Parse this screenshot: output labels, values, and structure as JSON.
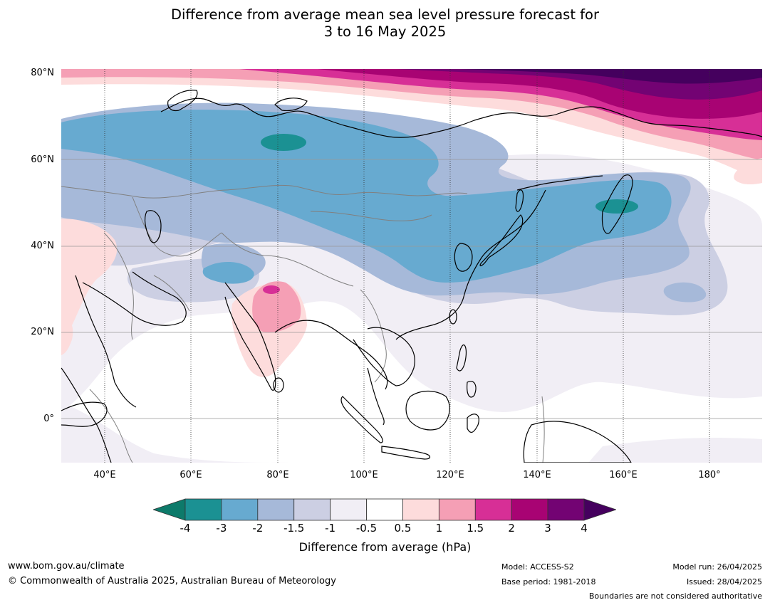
{
  "title": {
    "line1": "Difference from average mean sea level pressure forecast for",
    "line2": "3 to 16 May 2025"
  },
  "map": {
    "lat_labels": [
      "80°N",
      "60°N",
      "40°N",
      "20°N",
      "0°"
    ],
    "lon_labels": [
      "40°E",
      "60°E",
      "80°E",
      "100°E",
      "120°E",
      "140°E",
      "160°E",
      "180°"
    ]
  },
  "colorbar": {
    "ticks": [
      "-4",
      "-3",
      "-2",
      "-1.5",
      "-1",
      "-0.5",
      "0.5",
      "1",
      "1.5",
      "2",
      "3",
      "4"
    ],
    "colors": [
      "#0d7a6a",
      "#1b9193",
      "#67aad0",
      "#a6b9d9",
      "#cccfe3",
      "#f1eef5",
      "#ffffff",
      "#fddcdc",
      "#f59fb5",
      "#d72f96",
      "#a80373",
      "#730373",
      "#45005e"
    ],
    "label": "Difference from average (hPa)"
  },
  "footer": {
    "url": "www.bom.gov.au/climate",
    "copyright": "© Commonwealth of Australia 2025, Australian Bureau of Meteorology",
    "model": "Model: ACCESS-S2",
    "base_period": "Base period: 1981-2018",
    "model_run": "Model run: 26/04/2025",
    "issued": "Issued: 28/04/2025",
    "disclaimer": "Boundaries are not considered authoritative"
  }
}
